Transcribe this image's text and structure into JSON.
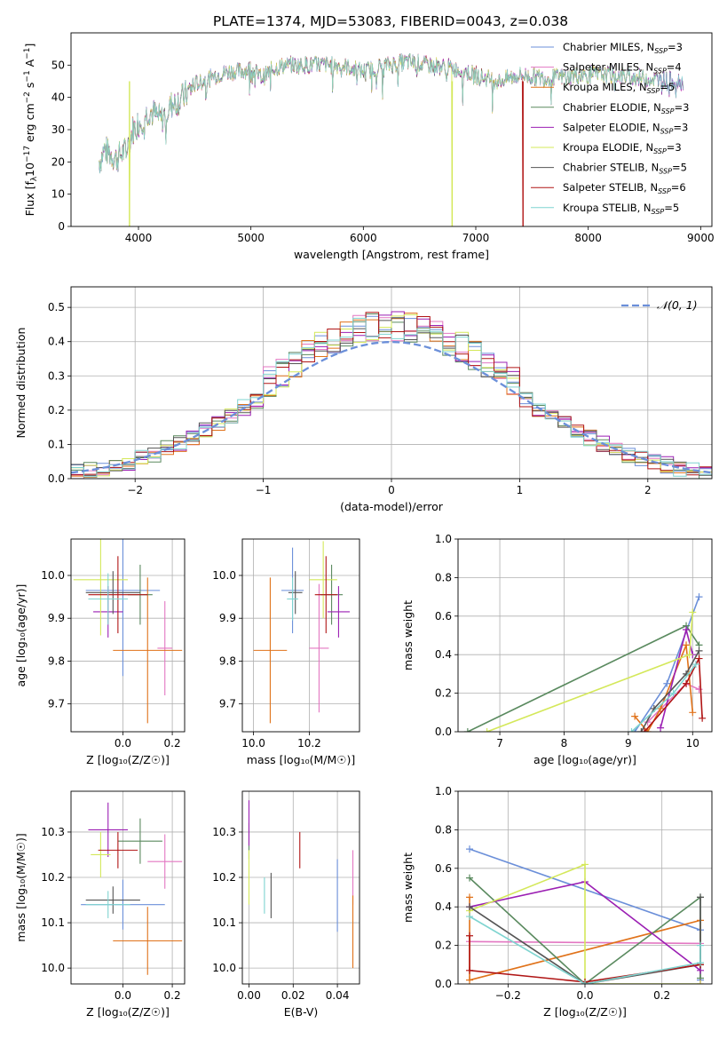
{
  "figure": {
    "title": "PLATE=1374, MJD=53083, FIBERID=0043, z=0.038"
  },
  "colors": {
    "Chabrier MILES": "#6b8fd9",
    "Salpeter MILES": "#e377c2",
    "Kroupa MILES": "#e0721a",
    "Chabrier ELODIE": "#5a8a5f",
    "Salpeter ELODIE": "#9b1fb3",
    "Kroupa ELODIE": "#d4e85a",
    "Chabrier STELIB": "#555555",
    "Salpeter STELIB": "#b01515",
    "Kroupa STELIB": "#7fd4d0"
  },
  "chart_data": [
    {
      "type": "line",
      "id": "spectrum",
      "xlabel": "wavelength [Angstrom, rest frame]",
      "ylabel": "Flux [f",
      "ylabel_sub": "λ",
      "ylabel_rest": "10",
      "ylabel_sup": "−17",
      "ylabel_end1": " erg cm",
      "ylabel_sup2": "−2",
      "ylabel_end2": " s",
      "ylabel_sup3": "−1",
      "ylabel_end3": " A",
      "ylabel_sup4": "−1",
      "ylabel_close": "]",
      "xlim": [
        3400,
        9100
      ],
      "ylim": [
        0,
        60
      ],
      "xticks": [
        4000,
        5000,
        6000,
        7000,
        8000,
        9000
      ],
      "yticks": [
        0,
        10,
        20,
        30,
        40,
        50
      ],
      "grid": false,
      "legend_position": "top-right",
      "legend": [
        {
          "pre": "Chabrier MILES, N",
          "sub": "SSP",
          "post": "=3"
        },
        {
          "pre": "Salpeter MILES, N",
          "sub": "SSP",
          "post": "=4"
        },
        {
          "pre": "Kroupa MILES, N",
          "sub": "SSP",
          "post": "=5"
        },
        {
          "pre": "Chabrier ELODIE, N",
          "sub": "SSP",
          "post": "=3"
        },
        {
          "pre": "Salpeter ELODIE, N",
          "sub": "SSP",
          "post": "=3"
        },
        {
          "pre": "Kroupa ELODIE, N",
          "sub": "SSP",
          "post": "=3"
        },
        {
          "pre": "Chabrier STELIB, N",
          "sub": "SSP",
          "post": "=5"
        },
        {
          "pre": "Salpeter STELIB, N",
          "sub": "SSP",
          "post": "=6"
        },
        {
          "pre": "Kroupa STELIB, N",
          "sub": "SSP",
          "post": "=5"
        }
      ],
      "continuum": [
        [
          3650,
          20
        ],
        [
          3700,
          24
        ],
        [
          3800,
          21
        ],
        [
          3900,
          24
        ],
        [
          3950,
          30
        ],
        [
          4000,
          32
        ],
        [
          4100,
          36
        ],
        [
          4200,
          33
        ],
        [
          4300,
          38
        ],
        [
          4400,
          40
        ],
        [
          4500,
          44
        ],
        [
          4700,
          47
        ],
        [
          4800,
          48
        ],
        [
          4900,
          48
        ],
        [
          5000,
          49
        ],
        [
          5100,
          46
        ],
        [
          5200,
          49
        ],
        [
          5300,
          50
        ],
        [
          5500,
          50
        ],
        [
          5800,
          50
        ],
        [
          6000,
          48
        ],
        [
          6200,
          50
        ],
        [
          6400,
          51
        ],
        [
          6600,
          50
        ],
        [
          6800,
          49
        ],
        [
          7000,
          47
        ],
        [
          7200,
          45
        ],
        [
          7400,
          47
        ],
        [
          7600,
          46
        ],
        [
          8000,
          47
        ],
        [
          8200,
          47
        ],
        [
          8500,
          46
        ],
        [
          8800,
          45
        ]
      ],
      "dropouts": [
        {
          "series": "Kroupa ELODIE",
          "x": 3920
        },
        {
          "series": "Kroupa ELODIE",
          "x": 6790
        },
        {
          "series": "Salpeter STELIB",
          "x": 7420
        }
      ]
    },
    {
      "type": "step-histogram",
      "id": "residuals",
      "xlabel": "(data-model)/error",
      "ylabel": "Normed distribution",
      "xlim": [
        -2.5,
        2.5
      ],
      "ylim": [
        0,
        0.56
      ],
      "xticks": [
        -2,
        -1,
        0,
        1,
        2
      ],
      "yticks": [
        0.0,
        0.1,
        0.2,
        0.3,
        0.4,
        0.5
      ],
      "grid": true,
      "legend": "𝒩(0, 1)",
      "legend_position": "top-right",
      "bin_width": 0.1,
      "bin_start": -2.5,
      "gaussian": {
        "mean": 0,
        "sigma": 1
      }
    },
    {
      "type": "errorbar",
      "id": "age-vs-Z",
      "xlabel": "Z [log₁₀(Z/Z☉)]",
      "ylabel": "age  [log₁₀(age/yr)]",
      "xlim": [
        -0.21,
        0.25
      ],
      "ylim": [
        9.635,
        10.085
      ],
      "xticks": [
        0.0,
        0.2
      ],
      "yticks": [
        9.7,
        9.8,
        9.9,
        10.0
      ],
      "grid": true,
      "points": [
        {
          "series": "Chabrier MILES",
          "x": 0.0,
          "xerr": 0.15,
          "y": 9.965,
          "yerr": 0.2
        },
        {
          "series": "Salpeter MILES",
          "x": 0.17,
          "xerr": 0.03,
          "y": 9.83,
          "yerr": 0.11
        },
        {
          "series": "Kroupa MILES",
          "x": 0.1,
          "xerr": 0.14,
          "y": 9.825,
          "yerr": 0.17
        },
        {
          "series": "Chabrier ELODIE",
          "x": 0.07,
          "xerr": 0.05,
          "y": 9.955,
          "yerr": 0.07
        },
        {
          "series": "Salpeter ELODIE",
          "x": -0.06,
          "xerr": 0.06,
          "y": 9.915,
          "yerr": 0.06
        },
        {
          "series": "Kroupa ELODIE",
          "x": -0.09,
          "xerr": 0.11,
          "y": 9.99,
          "yerr": 0.13
        },
        {
          "series": "Chabrier STELIB",
          "x": -0.04,
          "xerr": 0.11,
          "y": 9.96,
          "yerr": 0.05
        },
        {
          "series": "Salpeter STELIB",
          "x": -0.02,
          "xerr": 0.12,
          "y": 9.955,
          "yerr": 0.09
        },
        {
          "series": "Kroupa STELIB",
          "x": -0.06,
          "xerr": 0.08,
          "y": 9.945,
          "yerr": 0.06
        }
      ]
    },
    {
      "type": "errorbar",
      "id": "age-vs-mass",
      "xlabel": "mass [log₁₀(M/M☉)]",
      "ylabel": "",
      "xlim": [
        9.96,
        10.38
      ],
      "ylim": [
        9.635,
        10.085
      ],
      "xticks": [
        10.0,
        10.2
      ],
      "yticks": [
        9.7,
        9.8,
        9.9,
        10.0
      ],
      "grid": true,
      "points": [
        {
          "series": "Chabrier MILES",
          "x": 10.14,
          "xerr": 0.04,
          "y": 9.965,
          "yerr": 0.1
        },
        {
          "series": "Salpeter MILES",
          "x": 10.235,
          "xerr": 0.035,
          "y": 9.83,
          "yerr": 0.15
        },
        {
          "series": "Kroupa MILES",
          "x": 10.06,
          "xerr": 0.06,
          "y": 9.825,
          "yerr": 0.17
        },
        {
          "series": "Chabrier ELODIE",
          "x": 10.28,
          "xerr": 0.04,
          "y": 9.955,
          "yerr": 0.07
        },
        {
          "series": "Salpeter ELODIE",
          "x": 10.305,
          "xerr": 0.04,
          "y": 9.915,
          "yerr": 0.06
        },
        {
          "series": "Kroupa ELODIE",
          "x": 10.25,
          "xerr": 0.05,
          "y": 9.99,
          "yerr": 0.09
        },
        {
          "series": "Chabrier STELIB",
          "x": 10.15,
          "xerr": 0.025,
          "y": 9.96,
          "yerr": 0.05
        },
        {
          "series": "Salpeter STELIB",
          "x": 10.26,
          "xerr": 0.04,
          "y": 9.955,
          "yerr": 0.09
        },
        {
          "series": "Kroupa STELIB",
          "x": 10.14,
          "xerr": 0.02,
          "y": 9.945,
          "yerr": 0.05
        }
      ]
    },
    {
      "type": "line",
      "id": "massweight-vs-age",
      "xlabel": "age  [log₁₀(age/yr)]",
      "ylabel": "mass weight",
      "xlim": [
        6.35,
        10.3
      ],
      "ylim": [
        0,
        1
      ],
      "xticks": [
        7,
        8,
        9,
        10
      ],
      "yticks": [
        0.0,
        0.2,
        0.4,
        0.6,
        0.8,
        1.0
      ],
      "grid": true,
      "series": [
        {
          "name": "Chabrier MILES",
          "points": [
            [
              9.1,
              0.0
            ],
            [
              9.6,
              0.25
            ],
            [
              10.1,
              0.7
            ]
          ]
        },
        {
          "name": "Salpeter MILES",
          "points": [
            [
              9.3,
              0.05
            ],
            [
              9.9,
              0.25
            ],
            [
              10.1,
              0.22
            ]
          ]
        },
        {
          "name": "Kroupa MILES",
          "points": [
            [
              9.1,
              0.08
            ],
            [
              9.3,
              0.0
            ],
            [
              9.5,
              0.12
            ],
            [
              9.9,
              0.45
            ],
            [
              10.0,
              0.1
            ]
          ]
        },
        {
          "name": "Chabrier ELODIE",
          "points": [
            [
              6.5,
              0.0
            ],
            [
              9.9,
              0.55
            ],
            [
              10.1,
              0.45
            ]
          ]
        },
        {
          "name": "Salpeter ELODIE",
          "points": [
            [
              9.5,
              0.02
            ],
            [
              9.9,
              0.53
            ],
            [
              10.0,
              0.4
            ]
          ]
        },
        {
          "name": "Kroupa ELODIE",
          "points": [
            [
              6.8,
              0.0
            ],
            [
              9.95,
              0.4
            ],
            [
              10.0,
              0.62
            ]
          ]
        },
        {
          "name": "Chabrier STELIB",
          "points": [
            [
              9.2,
              0.0
            ],
            [
              9.4,
              0.12
            ],
            [
              9.9,
              0.3
            ],
            [
              10.1,
              0.42
            ]
          ]
        },
        {
          "name": "Salpeter STELIB",
          "points": [
            [
              9.25,
              0.0
            ],
            [
              9.9,
              0.25
            ],
            [
              10.1,
              0.38
            ],
            [
              10.15,
              0.07
            ]
          ]
        },
        {
          "name": "Kroupa STELIB",
          "points": [
            [
              9.05,
              0.0
            ],
            [
              9.7,
              0.2
            ],
            [
              10.05,
              0.35
            ]
          ]
        }
      ]
    },
    {
      "type": "errorbar",
      "id": "mass-vs-Z",
      "xlabel": "Z [log₁₀(Z/Z☉)]",
      "ylabel": "mass [log₁₀(M/M☉)]",
      "xlim": [
        -0.21,
        0.25
      ],
      "ylim": [
        9.965,
        10.39
      ],
      "xticks": [
        0.0,
        0.2
      ],
      "yticks": [
        10.0,
        10.1,
        10.2,
        10.3
      ],
      "grid": true,
      "points": [
        {
          "series": "Chabrier MILES",
          "x": 0.0,
          "xerr": 0.17,
          "y": 10.14,
          "yerr": 0.055
        },
        {
          "series": "Salpeter MILES",
          "x": 0.17,
          "xerr": 0.07,
          "y": 10.235,
          "yerr": 0.06
        },
        {
          "series": "Kroupa MILES",
          "x": 0.1,
          "xerr": 0.14,
          "y": 10.06,
          "yerr": 0.075
        },
        {
          "series": "Chabrier ELODIE",
          "x": 0.07,
          "xerr": 0.09,
          "y": 10.28,
          "yerr": 0.05
        },
        {
          "series": "Salpeter ELODIE",
          "x": -0.06,
          "xerr": 0.08,
          "y": 10.305,
          "yerr": 0.06
        },
        {
          "series": "Kroupa ELODIE",
          "x": -0.09,
          "xerr": 0.04,
          "y": 10.25,
          "yerr": 0.05
        },
        {
          "series": "Chabrier STELIB",
          "x": -0.04,
          "xerr": 0.11,
          "y": 10.15,
          "yerr": 0.03
        },
        {
          "series": "Salpeter STELIB",
          "x": -0.02,
          "xerr": 0.08,
          "y": 10.26,
          "yerr": 0.04
        },
        {
          "series": "Kroupa STELIB",
          "x": -0.06,
          "xerr": 0.09,
          "y": 10.14,
          "yerr": 0.03
        }
      ]
    },
    {
      "type": "errorbar",
      "id": "mass-vs-EBV",
      "xlabel": "E(B-V)",
      "ylabel": "",
      "xlim": [
        -0.003,
        0.05
      ],
      "ylim": [
        9.965,
        10.39
      ],
      "xticks": [
        0.0,
        0.02,
        0.04
      ],
      "yticks": [
        10.0,
        10.1,
        10.2,
        10.3
      ],
      "grid": true,
      "points": [
        {
          "series": "Chabrier MILES",
          "x": 0.04,
          "xerr": 0,
          "y": 10.16,
          "yerr": 0.08
        },
        {
          "series": "Salpeter MILES",
          "x": 0.047,
          "xerr": 0,
          "y": 10.2,
          "yerr": 0.06
        },
        {
          "series": "Kroupa MILES",
          "x": 0.047,
          "xerr": 0,
          "y": 10.08,
          "yerr": 0.08
        },
        {
          "series": "Chabrier ELODIE",
          "x": 0.0,
          "xerr": 0,
          "y": 10.28,
          "yerr": 0.04
        },
        {
          "series": "Salpeter ELODIE",
          "x": 0.0,
          "xerr": 0,
          "y": 10.32,
          "yerr": 0.05
        },
        {
          "series": "Kroupa ELODIE",
          "x": 0.0,
          "xerr": 0,
          "y": 10.2,
          "yerr": 0.06
        },
        {
          "series": "Chabrier STELIB",
          "x": 0.01,
          "xerr": 0,
          "y": 10.16,
          "yerr": 0.05
        },
        {
          "series": "Salpeter STELIB",
          "x": 0.023,
          "xerr": 0,
          "y": 10.26,
          "yerr": 0.04
        },
        {
          "series": "Kroupa STELIB",
          "x": 0.007,
          "xerr": 0,
          "y": 10.16,
          "yerr": 0.04
        }
      ]
    },
    {
      "type": "line",
      "id": "massweight-vs-Z",
      "xlabel": "Z [log₁₀(Z/Z☉)]",
      "ylabel": "mass weight",
      "xlim": [
        -0.33,
        0.33
      ],
      "ylim": [
        0,
        1
      ],
      "xticks": [
        -0.2,
        0.0,
        0.2
      ],
      "yticks": [
        0.0,
        0.2,
        0.4,
        0.6,
        0.8,
        1.0
      ],
      "grid": true,
      "series": [
        {
          "name": "Chabrier MILES",
          "points": [
            [
              -0.3,
              0.7
            ],
            [
              0.3,
              0.28
            ],
            [
              0.3,
              0.02
            ]
          ]
        },
        {
          "name": "Salpeter MILES",
          "points": [
            [
              -0.3,
              0.22
            ],
            [
              0.3,
              0.21
            ],
            [
              0.3,
              0.0
            ]
          ]
        },
        {
          "name": "Kroupa MILES",
          "points": [
            [
              -0.3,
              0.45
            ],
            [
              -0.3,
              0.02
            ],
            [
              0.3,
              0.33
            ],
            [
              0.3,
              0.1
            ]
          ]
        },
        {
          "name": "Chabrier ELODIE",
          "points": [
            [
              -0.3,
              0.55
            ],
            [
              0.0,
              0.0
            ],
            [
              0.3,
              0.45
            ],
            [
              0.3,
              0.03
            ]
          ]
        },
        {
          "name": "Salpeter ELODIE",
          "points": [
            [
              -0.3,
              0.4
            ],
            [
              0.0,
              0.53
            ],
            [
              0.3,
              0.07
            ]
          ]
        },
        {
          "name": "Kroupa ELODIE",
          "points": [
            [
              -0.3,
              0.38
            ],
            [
              0.0,
              0.62
            ],
            [
              0.0,
              0.0
            ],
            [
              0.3,
              0.0
            ]
          ]
        },
        {
          "name": "Chabrier STELIB",
          "points": [
            [
              -0.3,
              0.4
            ],
            [
              0.0,
              0.0
            ],
            [
              0.3,
              0.1
            ],
            [
              0.3,
              0.45
            ]
          ]
        },
        {
          "name": "Salpeter STELIB",
          "points": [
            [
              -0.3,
              0.25
            ],
            [
              -0.3,
              0.07
            ],
            [
              0.0,
              0.01
            ],
            [
              0.3,
              0.1
            ]
          ]
        },
        {
          "name": "Kroupa STELIB",
          "points": [
            [
              -0.3,
              0.35
            ],
            [
              0.0,
              0.0
            ],
            [
              0.3,
              0.11
            ],
            [
              0.3,
              0.2
            ]
          ]
        }
      ]
    }
  ]
}
